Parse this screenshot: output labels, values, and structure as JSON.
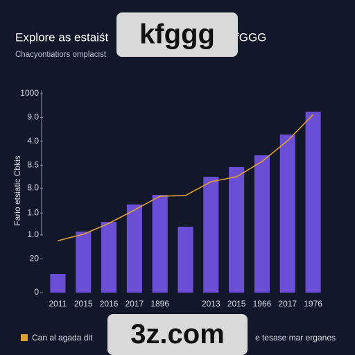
{
  "chart_data": {
    "type": "bar",
    "title": "Explore as estaiśt",
    "title_end": "fGGG",
    "subtitle": "Chacyontiatiors omplacist",
    "y_label": "Fario etsiatic Cbkis",
    "categories": [
      "2011",
      "2015",
      "2016",
      "2017",
      "1896",
      null,
      "2013",
      "2015",
      "1966",
      "2017",
      "1976"
    ],
    "series": [
      {
        "name": "e tesase mar erganes",
        "type": "bar",
        "color": "#6a4fd6",
        "values": [
          94,
          307,
          355,
          443,
          491,
          331,
          582,
          631,
          690,
          794,
          909
        ]
      },
      {
        "name": "Can al agada dit",
        "type": "line",
        "color": "#e0a030",
        "values": [
          261,
          293,
          348,
          415,
          484,
          488,
          557,
          582,
          659,
          763,
          895
        ]
      }
    ],
    "ylim": [
      0,
      1000
    ],
    "yticks": [
      0,
      {
        "value": 170,
        "label": "20"
      },
      {
        "value": 290,
        "label": "1.0"
      },
      {
        "value": 400,
        "label": "1.0"
      },
      {
        "value": 525,
        "label": "8.0"
      },
      {
        "value": 640,
        "label": "8.5"
      },
      {
        "value": 760,
        "label": "4.0"
      },
      {
        "value": 880,
        "label": "9.0"
      },
      1000
    ],
    "grid": false,
    "watermarks": [
      "kfggg",
      "3z.com"
    ]
  }
}
